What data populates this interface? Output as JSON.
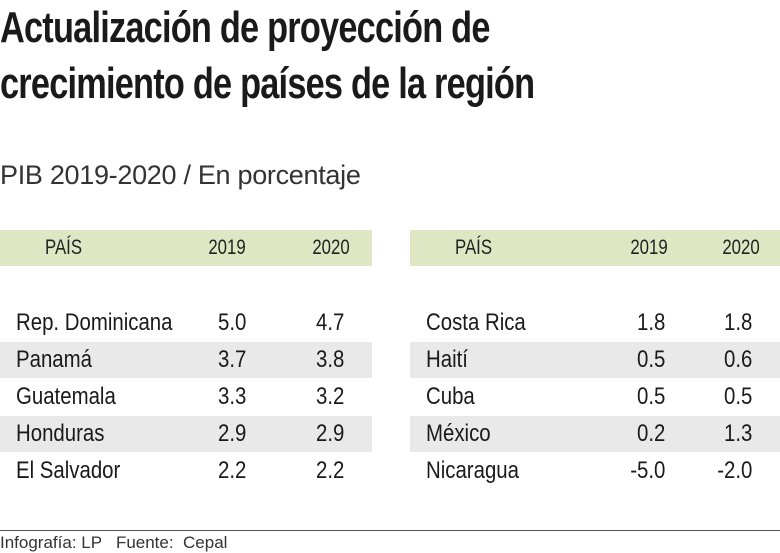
{
  "title_line1": "Actualización de proyección de",
  "title_line2": "crecimiento de países de la región",
  "subtitle": "PIB 2019-2020 / En porcentaje",
  "colors": {
    "header_band": "#dfe6c3",
    "stripe": "#e9e9e9"
  },
  "chart_data": {
    "type": "table",
    "title": "Actualización de proyección de crecimiento de países de la región",
    "subtitle": "PIB 2019-2020 / En porcentaje",
    "columns": [
      "PAÍS",
      "2019",
      "2020"
    ],
    "tables": [
      {
        "rows": [
          {
            "country": "Rep. Dominicana",
            "y2019": "5.0",
            "y2020": "4.7"
          },
          {
            "country": "Panamá",
            "y2019": "3.7",
            "y2020": "3.8"
          },
          {
            "country": "Guatemala",
            "y2019": "3.3",
            "y2020": "3.2"
          },
          {
            "country": "Honduras",
            "y2019": "2.9",
            "y2020": "2.9"
          },
          {
            "country": "El Salvador",
            "y2019": "2.2",
            "y2020": "2.2"
          }
        ]
      },
      {
        "rows": [
          {
            "country": "Costa Rica",
            "y2019": "1.8",
            "y2020": "1.8"
          },
          {
            "country": "Haití",
            "y2019": "0.5",
            "y2020": "0.6"
          },
          {
            "country": "Cuba",
            "y2019": "0.5",
            "y2020": "0.5"
          },
          {
            "country": "México",
            "y2019": "0.2",
            "y2020": "1.3"
          },
          {
            "country": "Nicaragua",
            "y2019": "-5.0",
            "y2020": "-2.0"
          }
        ]
      }
    ]
  },
  "footer": {
    "credit": "Infografía: LP",
    "source": "Fuente:  Cepal"
  }
}
